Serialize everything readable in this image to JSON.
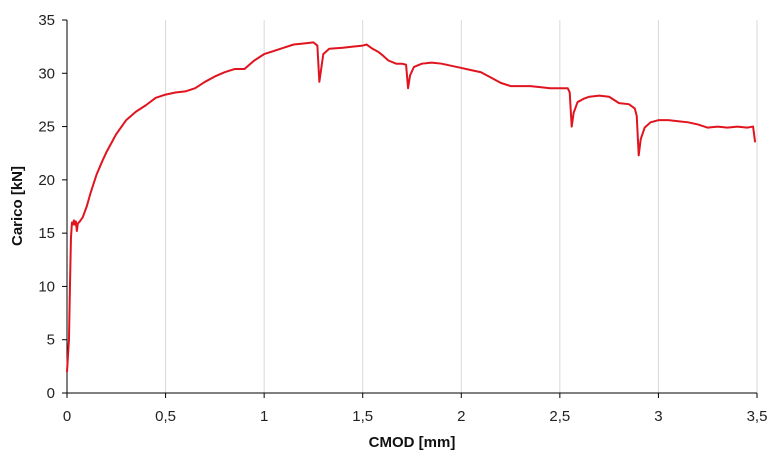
{
  "chart_data": {
    "type": "line",
    "title": "",
    "xlabel": "CMOD [mm]",
    "ylabel": "Carico [kN]",
    "xlim": [
      0,
      3.5
    ],
    "ylim": [
      0,
      35
    ],
    "x_ticks": [
      0,
      0.5,
      1,
      1.5,
      2,
      2.5,
      3,
      3.5
    ],
    "x_tick_labels": [
      "0",
      "0,5",
      "1",
      "1,5",
      "2",
      "2,5",
      "3",
      "3,5"
    ],
    "y_ticks": [
      0,
      5,
      10,
      15,
      20,
      25,
      30,
      35
    ],
    "y_tick_labels": [
      "0",
      "5",
      "10",
      "15",
      "20",
      "25",
      "30",
      "35"
    ],
    "grid": "vertical",
    "legend": "none",
    "colors": {
      "series": "#e0141e",
      "grid": "#d9d9d9",
      "axis": "#000000"
    },
    "series": [
      {
        "points": [
          [
            0.0,
            2.0
          ],
          [
            0.01,
            5.0
          ],
          [
            0.015,
            10.0
          ],
          [
            0.02,
            14.5
          ],
          [
            0.025,
            16.0
          ],
          [
            0.03,
            15.8
          ],
          [
            0.035,
            16.2
          ],
          [
            0.04,
            15.8
          ],
          [
            0.045,
            16.1
          ],
          [
            0.05,
            15.2
          ],
          [
            0.055,
            15.9
          ],
          [
            0.065,
            16.1
          ],
          [
            0.08,
            16.5
          ],
          [
            0.1,
            17.5
          ],
          [
            0.12,
            18.8
          ],
          [
            0.15,
            20.5
          ],
          [
            0.18,
            21.8
          ],
          [
            0.2,
            22.6
          ],
          [
            0.25,
            24.3
          ],
          [
            0.3,
            25.6
          ],
          [
            0.35,
            26.4
          ],
          [
            0.4,
            27.0
          ],
          [
            0.45,
            27.7
          ],
          [
            0.5,
            28.0
          ],
          [
            0.55,
            28.2
          ],
          [
            0.6,
            28.3
          ],
          [
            0.65,
            28.6
          ],
          [
            0.7,
            29.2
          ],
          [
            0.75,
            29.7
          ],
          [
            0.8,
            30.1
          ],
          [
            0.85,
            30.4
          ],
          [
            0.9,
            30.4
          ],
          [
            0.95,
            31.2
          ],
          [
            1.0,
            31.8
          ],
          [
            1.05,
            32.1
          ],
          [
            1.1,
            32.4
          ],
          [
            1.15,
            32.7
          ],
          [
            1.2,
            32.8
          ],
          [
            1.25,
            32.9
          ],
          [
            1.27,
            32.6
          ],
          [
            1.28,
            29.2
          ],
          [
            1.29,
            30.5
          ],
          [
            1.3,
            31.8
          ],
          [
            1.33,
            32.3
          ],
          [
            1.4,
            32.4
          ],
          [
            1.45,
            32.5
          ],
          [
            1.5,
            32.6
          ],
          [
            1.52,
            32.7
          ],
          [
            1.55,
            32.3
          ],
          [
            1.58,
            32.0
          ],
          [
            1.6,
            31.7
          ],
          [
            1.63,
            31.2
          ],
          [
            1.67,
            30.9
          ],
          [
            1.7,
            30.9
          ],
          [
            1.72,
            30.8
          ],
          [
            1.73,
            28.6
          ],
          [
            1.74,
            29.8
          ],
          [
            1.76,
            30.6
          ],
          [
            1.8,
            30.9
          ],
          [
            1.85,
            31.0
          ],
          [
            1.9,
            30.9
          ],
          [
            1.95,
            30.7
          ],
          [
            2.0,
            30.5
          ],
          [
            2.05,
            30.3
          ],
          [
            2.1,
            30.1
          ],
          [
            2.15,
            29.6
          ],
          [
            2.2,
            29.1
          ],
          [
            2.25,
            28.8
          ],
          [
            2.3,
            28.8
          ],
          [
            2.35,
            28.8
          ],
          [
            2.4,
            28.7
          ],
          [
            2.45,
            28.6
          ],
          [
            2.5,
            28.6
          ],
          [
            2.54,
            28.6
          ],
          [
            2.55,
            28.2
          ],
          [
            2.56,
            25.0
          ],
          [
            2.57,
            26.3
          ],
          [
            2.59,
            27.3
          ],
          [
            2.62,
            27.6
          ],
          [
            2.65,
            27.8
          ],
          [
            2.7,
            27.9
          ],
          [
            2.75,
            27.8
          ],
          [
            2.8,
            27.2
          ],
          [
            2.85,
            27.1
          ],
          [
            2.88,
            26.7
          ],
          [
            2.89,
            26.0
          ],
          [
            2.9,
            22.3
          ],
          [
            2.91,
            23.8
          ],
          [
            2.93,
            24.9
          ],
          [
            2.96,
            25.4
          ],
          [
            3.0,
            25.6
          ],
          [
            3.05,
            25.6
          ],
          [
            3.1,
            25.5
          ],
          [
            3.15,
            25.4
          ],
          [
            3.2,
            25.2
          ],
          [
            3.25,
            24.9
          ],
          [
            3.3,
            25.0
          ],
          [
            3.35,
            24.9
          ],
          [
            3.4,
            25.0
          ],
          [
            3.45,
            24.9
          ],
          [
            3.48,
            25.0
          ],
          [
            3.49,
            23.6
          ]
        ]
      }
    ]
  }
}
